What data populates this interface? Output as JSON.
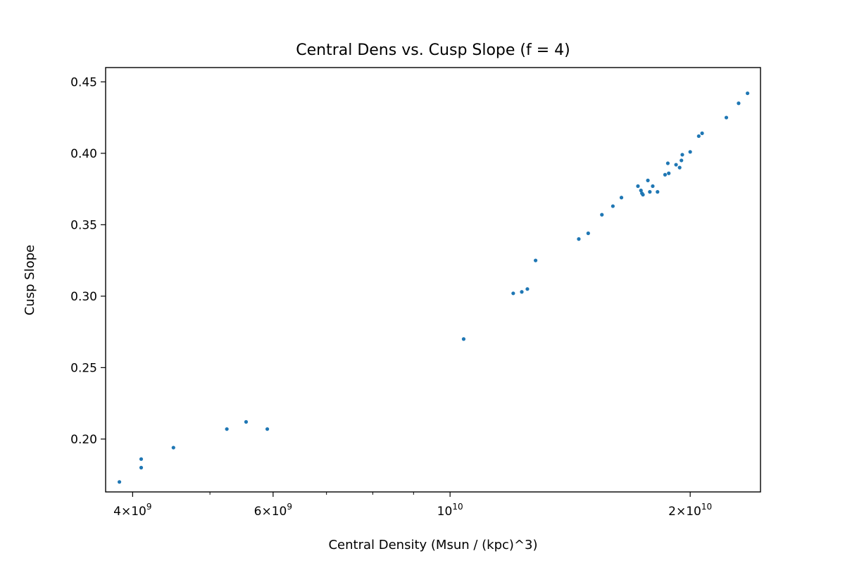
{
  "chart_data": {
    "type": "scatter",
    "title": "Central Dens vs. Cusp Slope (f = 4)",
    "xlabel": "Central Density (Msun / (kpc)^3)",
    "ylabel": "Cusp Slope",
    "x_scale": "log",
    "xlim": [
      3700000000.0,
      24500000000.0
    ],
    "ylim": [
      0.163,
      0.46
    ],
    "x_major_ticks": [
      {
        "value": 4000000000.0,
        "mantissa": "4",
        "exponent": "9"
      },
      {
        "value": 6000000000.0,
        "mantissa": "6",
        "exponent": "9"
      },
      {
        "value": 10000000000.0,
        "mantissa": "",
        "exponent": "10"
      },
      {
        "value": 20000000000.0,
        "mantissa": "2",
        "exponent": "10"
      }
    ],
    "x_minor_ticks": [
      5000000000.0,
      7000000000.0,
      8000000000.0,
      9000000000.0,
      3000000000.0
    ],
    "y_ticks": [
      {
        "value": 0.2,
        "label": "0.20"
      },
      {
        "value": 0.25,
        "label": "0.25"
      },
      {
        "value": 0.3,
        "label": "0.30"
      },
      {
        "value": 0.35,
        "label": "0.35"
      },
      {
        "value": 0.4,
        "label": "0.40"
      },
      {
        "value": 0.45,
        "label": "0.45"
      }
    ],
    "grid": false,
    "legend": "none",
    "marker_color": "#1f77b4",
    "points": [
      {
        "x": 3850000000.0,
        "y": 0.17
      },
      {
        "x": 4100000000.0,
        "y": 0.18
      },
      {
        "x": 4100000000.0,
        "y": 0.186
      },
      {
        "x": 4500000000.0,
        "y": 0.194
      },
      {
        "x": 5250000000.0,
        "y": 0.207
      },
      {
        "x": 5550000000.0,
        "y": 0.212
      },
      {
        "x": 5900000000.0,
        "y": 0.207
      },
      {
        "x": 10400000000.0,
        "y": 0.27
      },
      {
        "x": 12000000000.0,
        "y": 0.302
      },
      {
        "x": 12300000000.0,
        "y": 0.303
      },
      {
        "x": 12500000000.0,
        "y": 0.305
      },
      {
        "x": 12800000000.0,
        "y": 0.325
      },
      {
        "x": 14500000000.0,
        "y": 0.34
      },
      {
        "x": 14900000000.0,
        "y": 0.344
      },
      {
        "x": 15500000000.0,
        "y": 0.357
      },
      {
        "x": 16000000000.0,
        "y": 0.363
      },
      {
        "x": 16400000000.0,
        "y": 0.369
      },
      {
        "x": 17200000000.0,
        "y": 0.377
      },
      {
        "x": 17350000000.0,
        "y": 0.374
      },
      {
        "x": 17400000000.0,
        "y": 0.372
      },
      {
        "x": 17450000000.0,
        "y": 0.371
      },
      {
        "x": 17700000000.0,
        "y": 0.381
      },
      {
        "x": 17800000000.0,
        "y": 0.373
      },
      {
        "x": 17950000000.0,
        "y": 0.377
      },
      {
        "x": 18200000000.0,
        "y": 0.373
      },
      {
        "x": 18600000000.0,
        "y": 0.385
      },
      {
        "x": 18750000000.0,
        "y": 0.393
      },
      {
        "x": 18800000000.0,
        "y": 0.386
      },
      {
        "x": 19200000000.0,
        "y": 0.392
      },
      {
        "x": 19400000000.0,
        "y": 0.39
      },
      {
        "x": 19500000000.0,
        "y": 0.395
      },
      {
        "x": 19550000000.0,
        "y": 0.399
      },
      {
        "x": 20000000000.0,
        "y": 0.401
      },
      {
        "x": 20500000000.0,
        "y": 0.412
      },
      {
        "x": 20700000000.0,
        "y": 0.414
      },
      {
        "x": 22200000000.0,
        "y": 0.425
      },
      {
        "x": 23000000000.0,
        "y": 0.435
      },
      {
        "x": 23600000000.0,
        "y": 0.442
      }
    ]
  }
}
